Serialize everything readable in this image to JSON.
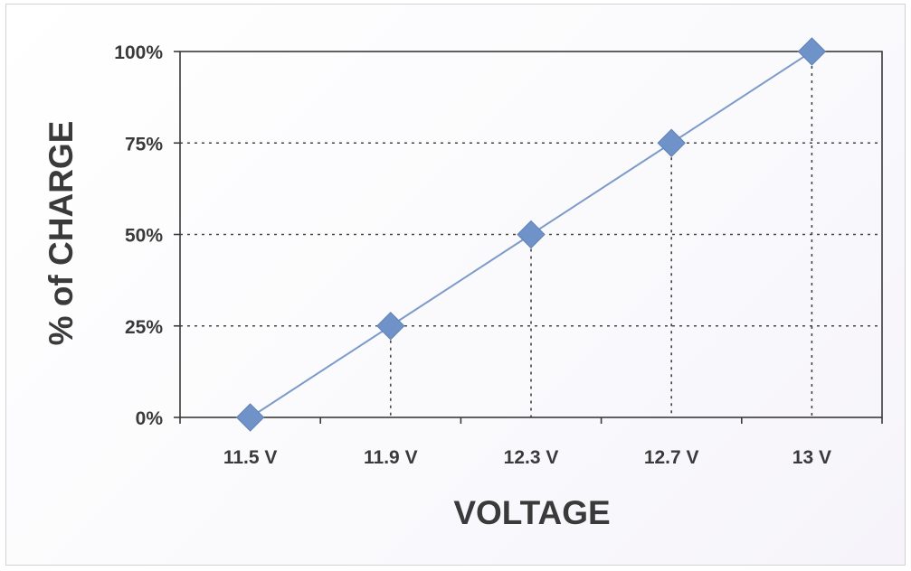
{
  "chart_data": {
    "type": "line",
    "title": "",
    "xlabel": "VOLTAGE",
    "ylabel": "% of CHARGE",
    "categories": [
      "11.5 V",
      "11.9 V",
      "12.3 V",
      "12.7 V",
      "13 V"
    ],
    "series": [
      {
        "values": [
          0,
          25,
          50,
          75,
          100
        ]
      }
    ],
    "ylim": [
      0,
      100
    ],
    "yticks": [
      "0%",
      "25%",
      "50%",
      "75%",
      "100%"
    ],
    "grid": "dotted, at data points",
    "legend": "none",
    "marker": "diamond",
    "colors": {
      "series": "#6f93c8",
      "series_line": "#7d9bc9",
      "axis": "#3a3a3a",
      "grid": "#444444",
      "text": "#3a3a3a"
    }
  }
}
